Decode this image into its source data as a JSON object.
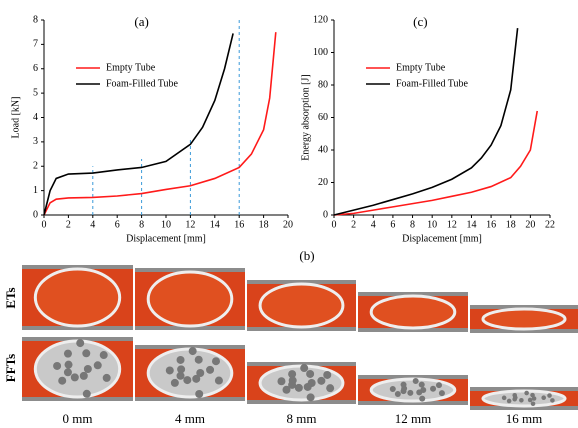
{
  "chart_data": [
    {
      "type": "line",
      "title": "(a)",
      "xlabel": "Displacement [mm]",
      "ylabel": "Load [kN]",
      "xlim": [
        0,
        20
      ],
      "ylim": [
        0,
        8
      ],
      "xticks": [
        0,
        2,
        4,
        6,
        8,
        10,
        12,
        14,
        16,
        18,
        20
      ],
      "yticks": [
        0,
        1,
        2,
        3,
        4,
        5,
        6,
        7,
        8
      ],
      "legend": "upper left",
      "series": [
        {
          "name": "Empty Tube",
          "color": "#ff1a1a",
          "x": [
            0,
            0.5,
            1,
            2,
            4,
            6,
            8,
            10,
            12,
            14,
            16,
            17,
            18,
            18.5,
            19
          ],
          "values": [
            0,
            0.5,
            0.65,
            0.7,
            0.72,
            0.78,
            0.88,
            1.05,
            1.2,
            1.5,
            1.95,
            2.5,
            3.5,
            4.8,
            7.5
          ]
        },
        {
          "name": "Foam-Filled Tube",
          "color": "#000000",
          "x": [
            0,
            0.5,
            1,
            2,
            4,
            6,
            8,
            10,
            12,
            13,
            14,
            14.8,
            15.5
          ],
          "values": [
            0,
            1,
            1.5,
            1.68,
            1.72,
            1.85,
            1.95,
            2.2,
            2.9,
            3.6,
            4.7,
            6,
            7.45
          ]
        }
      ],
      "reference_lines": {
        "color": "#3a9ad9",
        "x": [
          4,
          8,
          12,
          16
        ],
        "tops": [
          2,
          2.3,
          3.2,
          8
        ]
      }
    },
    {
      "type": "line",
      "title": "(c)",
      "xlabel": "Displacement [mm]",
      "ylabel": "Energy absorption [J]",
      "xlim": [
        0,
        22
      ],
      "ylim": [
        0,
        120
      ],
      "xticks": [
        0,
        2,
        4,
        6,
        8,
        10,
        12,
        14,
        16,
        18,
        20,
        22
      ],
      "yticks": [
        0,
        20,
        40,
        60,
        80,
        100,
        120
      ],
      "legend": "upper left",
      "series": [
        {
          "name": "Empty Tube",
          "color": "#ff1a1a",
          "x": [
            0,
            2,
            4,
            6,
            8,
            10,
            12,
            14,
            16,
            18,
            19,
            20,
            20.7
          ],
          "values": [
            0,
            1,
            3,
            5,
            7,
            9,
            11.5,
            14,
            17.5,
            23,
            30,
            40,
            64
          ]
        },
        {
          "name": "Foam-Filled Tube",
          "color": "#000000",
          "x": [
            0,
            2,
            4,
            6,
            8,
            10,
            12,
            14,
            15,
            16,
            17,
            18,
            18.7
          ],
          "values": [
            0,
            3,
            6,
            9.5,
            13,
            17,
            22,
            29,
            35,
            43,
            55,
            77,
            115
          ]
        }
      ]
    }
  ],
  "figure_b": {
    "label": "(b)",
    "rows": [
      "ETs",
      "FFTs"
    ],
    "columns": [
      "0 mm",
      "4 mm",
      "8 mm",
      "12 mm",
      "16 mm"
    ]
  }
}
